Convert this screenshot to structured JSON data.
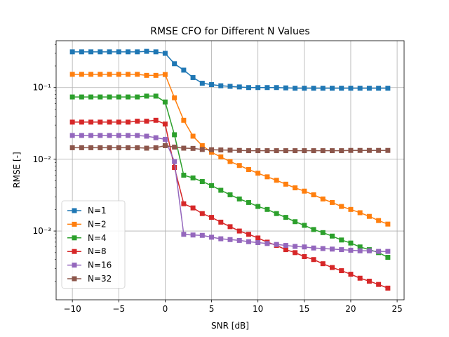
{
  "chart_data": {
    "type": "line",
    "title": "RMSE CFO for Different N Values",
    "xlabel": "SNR [dB]",
    "ylabel": "RMSE [-]",
    "yscale": "log",
    "grid": true,
    "legend_position": "lower-left",
    "xlim": [
      -11.75,
      25.75
    ],
    "ylim": [
      0.00011,
      0.45
    ],
    "x_ticks": [
      -10,
      -5,
      0,
      5,
      10,
      15,
      20,
      25
    ],
    "x_tick_labels": [
      "−10",
      "−5",
      "0",
      "5",
      "10",
      "15",
      "20",
      "25"
    ],
    "y_ticks": [
      0.001,
      0.01,
      0.1
    ],
    "y_tick_labels": [
      "10⁻³",
      "10⁻²",
      "10⁻¹"
    ],
    "x": [
      -10,
      -9,
      -8,
      -7,
      -6,
      -5,
      -4,
      -3,
      -2,
      -1,
      0,
      1,
      2,
      3,
      4,
      5,
      6,
      7,
      8,
      9,
      10,
      11,
      12,
      13,
      14,
      15,
      16,
      17,
      18,
      19,
      20,
      21,
      22,
      23,
      24
    ],
    "series": [
      {
        "name": "N=1",
        "color": "#1f77b4",
        "values": [
          0.315,
          0.315,
          0.315,
          0.315,
          0.315,
          0.315,
          0.315,
          0.315,
          0.32,
          0.315,
          0.3,
          0.215,
          0.175,
          0.138,
          0.115,
          0.11,
          0.106,
          0.104,
          0.102,
          0.1,
          0.1,
          0.1,
          0.1,
          0.099,
          0.098,
          0.098,
          0.098,
          0.098,
          0.098,
          0.098,
          0.098,
          0.098,
          0.098,
          0.098,
          0.098
        ]
      },
      {
        "name": "N=2",
        "color": "#ff7f0e",
        "values": [
          0.153,
          0.153,
          0.153,
          0.153,
          0.153,
          0.153,
          0.153,
          0.153,
          0.148,
          0.148,
          0.152,
          0.072,
          0.035,
          0.021,
          0.0155,
          0.0125,
          0.0108,
          0.0093,
          0.0082,
          0.0072,
          0.0064,
          0.0057,
          0.0051,
          0.0045,
          0.004,
          0.0036,
          0.0032,
          0.0028,
          0.0025,
          0.0022,
          0.002,
          0.0018,
          0.0016,
          0.0014,
          0.00125
        ]
      },
      {
        "name": "N=4",
        "color": "#2ca02c",
        "values": [
          0.074,
          0.074,
          0.074,
          0.074,
          0.074,
          0.074,
          0.074,
          0.074,
          0.076,
          0.076,
          0.063,
          0.022,
          0.006,
          0.0055,
          0.0049,
          0.0043,
          0.0037,
          0.0032,
          0.0028,
          0.0025,
          0.0022,
          0.002,
          0.00175,
          0.00155,
          0.00135,
          0.0012,
          0.00105,
          0.00095,
          0.00085,
          0.00075,
          0.00068,
          0.0006,
          0.00055,
          0.0005,
          0.00043
        ]
      },
      {
        "name": "N=8",
        "color": "#d62728",
        "values": [
          0.033,
          0.033,
          0.033,
          0.033,
          0.033,
          0.033,
          0.033,
          0.034,
          0.034,
          0.035,
          0.031,
          0.0077,
          0.0024,
          0.0021,
          0.00175,
          0.00155,
          0.00133,
          0.00115,
          0.001,
          0.0009,
          0.0008,
          0.0007,
          0.00063,
          0.00055,
          0.0005,
          0.00044,
          0.0004,
          0.00035,
          0.00031,
          0.00028,
          0.00025,
          0.00022,
          0.0002,
          0.00018,
          0.00016
        ]
      },
      {
        "name": "N=16",
        "color": "#9467bd",
        "values": [
          0.0215,
          0.0215,
          0.0215,
          0.0215,
          0.0215,
          0.0215,
          0.0215,
          0.0215,
          0.021,
          0.02,
          0.019,
          0.0093,
          0.0009,
          0.00088,
          0.00087,
          0.00082,
          0.00078,
          0.00076,
          0.00074,
          0.00071,
          0.00069,
          0.00067,
          0.00065,
          0.00063,
          0.00061,
          0.0006,
          0.00058,
          0.00057,
          0.00056,
          0.00055,
          0.00054,
          0.00053,
          0.00053,
          0.00052,
          0.00052
        ]
      },
      {
        "name": "N=32",
        "color": "#8c564b",
        "values": [
          0.0145,
          0.0145,
          0.0145,
          0.0145,
          0.0145,
          0.0145,
          0.0145,
          0.0145,
          0.0143,
          0.0145,
          0.0155,
          0.0148,
          0.0143,
          0.0142,
          0.0137,
          0.0136,
          0.0135,
          0.0134,
          0.0133,
          0.0132,
          0.0132,
          0.0132,
          0.0132,
          0.0132,
          0.0132,
          0.0132,
          0.0132,
          0.0132,
          0.0132,
          0.0132,
          0.0133,
          0.0133,
          0.0133,
          0.0133,
          0.0133
        ]
      }
    ]
  }
}
